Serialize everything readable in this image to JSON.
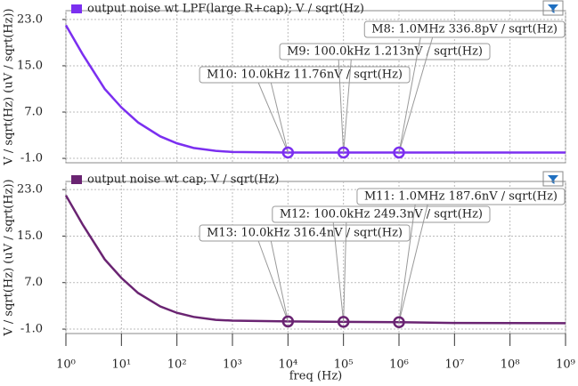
{
  "chart_data": [
    {
      "type": "line",
      "x": [
        1,
        2,
        5,
        10,
        20,
        50,
        100,
        200,
        500,
        1000,
        10000,
        100000,
        1000000,
        10000000,
        100000000,
        1000000000
      ],
      "series": [
        {
          "name": "output noise wt LPF(large R+cap); V / sqrt(Hz)",
          "color": "#7b2ff0",
          "values": [
            22,
            17,
            11,
            7.8,
            5.2,
            2.8,
            1.6,
            0.8,
            0.3,
            0.1,
            0.01176,
            0.001213,
            0.0003368,
            0.0001,
            5e-05,
            3e-05
          ]
        }
      ],
      "y_label": "V / sqrt(Hz) (uV / sqrt(Hz))",
      "xlim": [
        1,
        1000000000
      ],
      "x_log": true,
      "xticks": [
        1,
        10,
        100,
        1000,
        10000,
        100000,
        1000000,
        10000000,
        100000000,
        1000000000
      ],
      "ylim": [
        -1.76,
        24.52
      ],
      "yticks": [
        {
          "value": -1,
          "label": "-1.0"
        },
        {
          "value": 7,
          "label": "7.0"
        },
        {
          "value": 15,
          "label": "15.0"
        },
        {
          "value": 23,
          "label": "23.0"
        }
      ],
      "grid": true,
      "annotations": [
        {
          "label": "M10: 10.0kHz 11.76nV / sqrt(Hz)",
          "x": 10000,
          "y": 0.01176
        },
        {
          "label": "M9: 100.0kHz 1.213nV / sqrt(Hz)",
          "x": 100000,
          "y": 0.001213
        },
        {
          "label": "M8: 1.0MHz 336.8pV / sqrt(Hz)",
          "x": 1000000,
          "y": 0.0003368
        }
      ]
    },
    {
      "type": "line",
      "x": [
        1,
        2,
        5,
        10,
        20,
        50,
        100,
        200,
        500,
        1000,
        10000,
        100000,
        1000000,
        10000000,
        100000000,
        1000000000
      ],
      "series": [
        {
          "name": "output noise wt cap; V / sqrt(Hz)",
          "color": "#6a2472",
          "values": [
            22,
            17,
            11,
            7.8,
            5.2,
            2.9,
            1.8,
            1.1,
            0.6,
            0.45,
            0.3164,
            0.2493,
            0.1876,
            0.05,
            0.03,
            0.02
          ]
        }
      ],
      "y_label": "V / sqrt(Hz) (uV / sqrt(Hz))",
      "x_label": "freq (Hz)",
      "xlim": [
        1,
        1000000000
      ],
      "x_log": true,
      "xticks": [
        {
          "value": 1,
          "label": "10⁰"
        },
        {
          "value": 10,
          "label": "10¹"
        },
        {
          "value": 100,
          "label": "10²"
        },
        {
          "value": 1000,
          "label": "10³"
        },
        {
          "value": 10000,
          "label": "10⁴"
        },
        {
          "value": 100000,
          "label": "10⁵"
        },
        {
          "value": 1000000,
          "label": "10⁶"
        },
        {
          "value": 10000000,
          "label": "10⁷"
        },
        {
          "value": 100000000,
          "label": "10⁸"
        },
        {
          "value": 1000000000,
          "label": "10⁹"
        }
      ],
      "ylim": [
        -1.76,
        24.4
      ],
      "yticks": [
        {
          "value": -1,
          "label": "-1.0"
        },
        {
          "value": 7,
          "label": "7.0"
        },
        {
          "value": 15,
          "label": "15.0"
        },
        {
          "value": 23,
          "label": "23.0"
        }
      ],
      "grid": true,
      "annotations": [
        {
          "label": "M13: 10.0kHz 316.4nV / sqrt(Hz)",
          "x": 10000,
          "y": 0.3164
        },
        {
          "label": "M12: 100.0kHz 249.3nV / sqrt(Hz)",
          "x": 100000,
          "y": 0.2493
        },
        {
          "label": "M11: 1.0MHz 187.6nV / sqrt(Hz)",
          "x": 1000000,
          "y": 0.1876
        }
      ]
    }
  ]
}
